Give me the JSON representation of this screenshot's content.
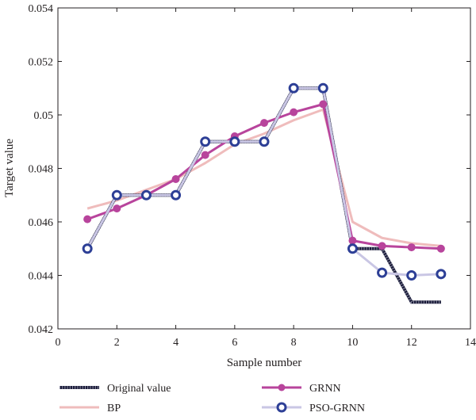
{
  "chart_data": {
    "type": "line",
    "xlabel": "Sample number",
    "ylabel": "Target value",
    "xlim": [
      0,
      14
    ],
    "ylim": [
      0.042,
      0.054
    ],
    "xticks": [
      "0",
      "2",
      "4",
      "6",
      "8",
      "10",
      "12",
      "14"
    ],
    "yticks": [
      "0.042",
      "0.044",
      "0.046",
      "0.048",
      "0.05",
      "0.052",
      "0.054"
    ],
    "grid": false,
    "legend_position": "bottom",
    "x": [
      1,
      2,
      3,
      4,
      5,
      6,
      7,
      8,
      9,
      10,
      11,
      12,
      13
    ],
    "series": [
      {
        "name": "Original value",
        "color": "#1b1d3a",
        "style": "dotted",
        "marker": "none",
        "values": [
          0.045,
          0.047,
          0.047,
          0.047,
          0.049,
          0.049,
          0.049,
          0.051,
          0.051,
          0.045,
          0.045,
          0.043,
          0.043
        ]
      },
      {
        "name": "BP",
        "color": "#efbcbc",
        "style": "solid",
        "marker": "none",
        "values": [
          0.0465,
          0.0468,
          0.0472,
          0.0476,
          0.0482,
          0.0489,
          0.0493,
          0.0498,
          0.0502,
          0.046,
          0.0454,
          0.0452,
          0.0451
        ]
      },
      {
        "name": "GRNN",
        "color": "#b8449c",
        "style": "solid",
        "marker": "filled-circle",
        "values": [
          0.0461,
          0.0465,
          0.047,
          0.0476,
          0.0485,
          0.0492,
          0.0497,
          0.0501,
          0.0504,
          0.0453,
          0.0451,
          0.04505,
          0.045
        ]
      },
      {
        "name": "PSO-GRNN",
        "color": "#c9c6e4",
        "marker_color": "#2d3f96",
        "style": "solid",
        "marker": "open-circle",
        "values": [
          0.045,
          0.047,
          0.047,
          0.047,
          0.049,
          0.049,
          0.049,
          0.051,
          0.051,
          0.045,
          0.0441,
          0.044,
          0.04405
        ]
      }
    ]
  }
}
